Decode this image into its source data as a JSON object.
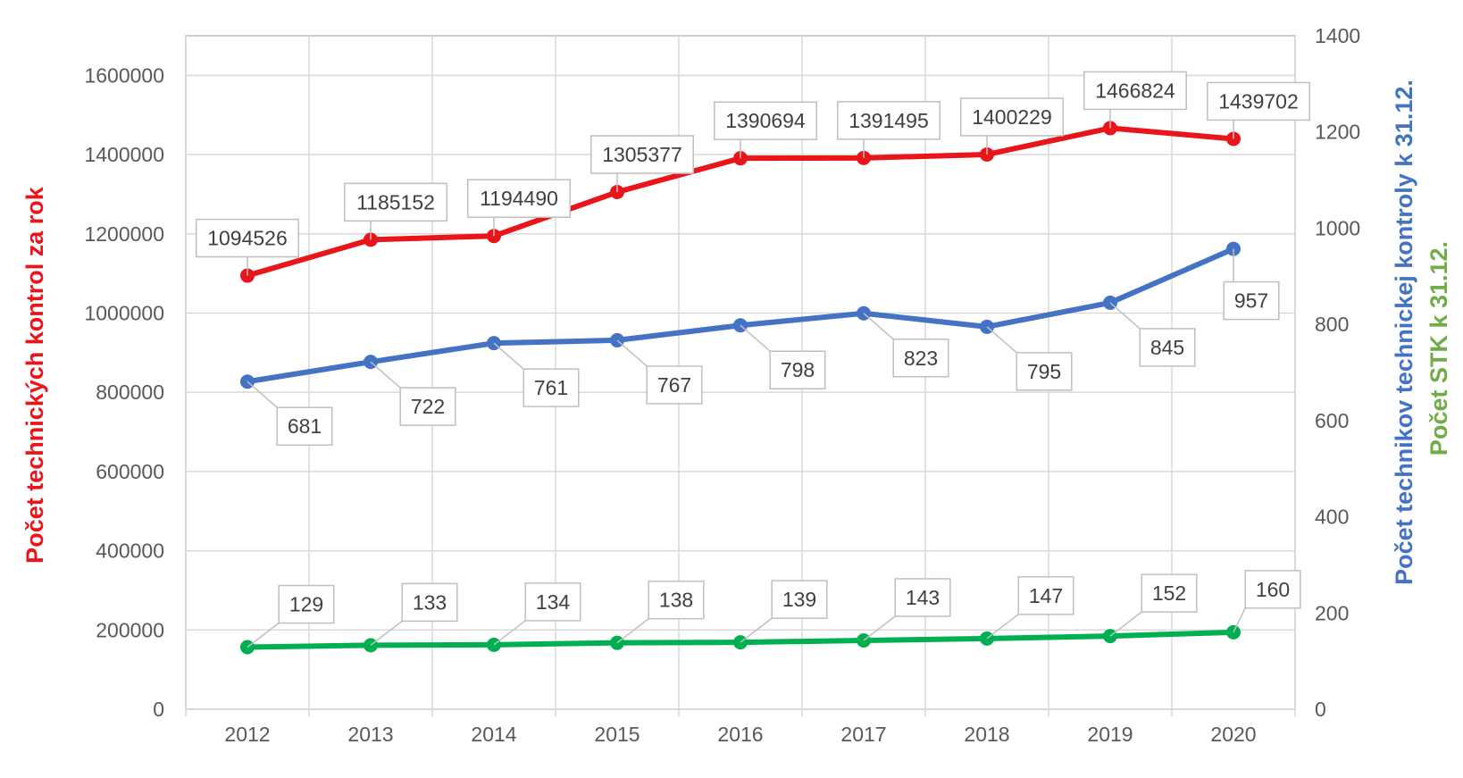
{
  "chart_data": {
    "type": "line",
    "categories": [
      "2012",
      "2013",
      "2014",
      "2015",
      "2016",
      "2017",
      "2018",
      "2019",
      "2020"
    ],
    "ylim_left": [
      0,
      1700000
    ],
    "yticks_left": [
      "0",
      "200000",
      "400000",
      "600000",
      "800000",
      "1000000",
      "1200000",
      "1400000",
      "1600000"
    ],
    "ylim_right": [
      0,
      1400
    ],
    "yticks_right": [
      "0",
      "200",
      "400",
      "600",
      "800",
      "1000",
      "1200",
      "1400"
    ],
    "grid": true,
    "axis_titles": {
      "left": "Počet technických kontrol za rok",
      "right_blue": "Počet technikov technickej kontroly k 31.12.",
      "right_green": "Počet STK k 31.12."
    },
    "series": [
      {
        "axis": "left",
        "color": "#e8151b",
        "values": [
          1094526,
          1185152,
          1194490,
          1305377,
          1390694,
          1391495,
          1400229,
          1466824,
          1439702
        ],
        "labels": [
          "1094526",
          "1185152",
          "1194490",
          "1305377",
          "1390694",
          "1391495",
          "1400229",
          "1466824",
          "1439702"
        ]
      },
      {
        "axis": "right",
        "color": "#4472c4",
        "values": [
          681,
          722,
          761,
          767,
          798,
          823,
          795,
          845,
          957
        ],
        "labels": [
          "681",
          "722",
          "761",
          "767",
          "798",
          "823",
          "795",
          "845",
          "957"
        ]
      },
      {
        "axis": "right",
        "color": "#00b050",
        "values": [
          129,
          133,
          134,
          138,
          139,
          143,
          147,
          152,
          160
        ],
        "labels": [
          "129",
          "133",
          "134",
          "138",
          "139",
          "143",
          "147",
          "152",
          "160"
        ]
      }
    ]
  }
}
